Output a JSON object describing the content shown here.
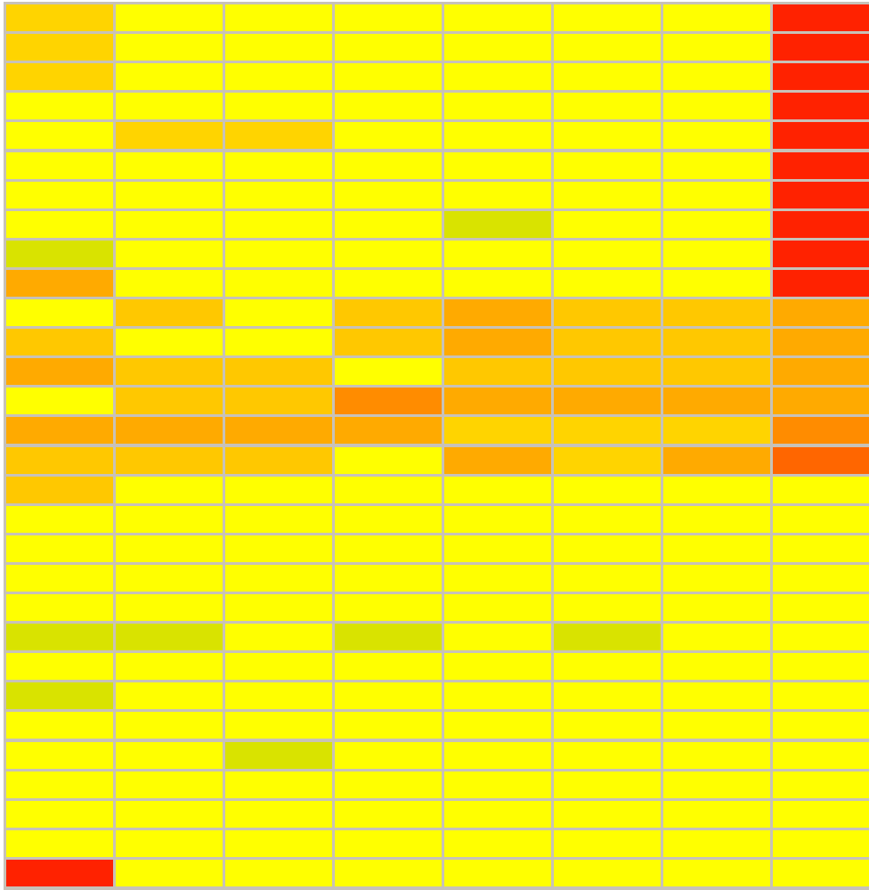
{
  "grid": {
    "background": "#c8c2b8",
    "rows": [
      [
        "#ffd400",
        "#ffff00",
        "#ffff00",
        "#ffff00",
        "#ffff00",
        "#ffff00",
        "#ffff00",
        "#ff2200"
      ],
      [
        "#ffd400",
        "#ffff00",
        "#ffff00",
        "#ffff00",
        "#ffff00",
        "#ffff00",
        "#ffff00",
        "#ff2200"
      ],
      [
        "#ffd400",
        "#ffff00",
        "#ffff00",
        "#ffff00",
        "#ffff00",
        "#ffff00",
        "#ffff00",
        "#ff2200"
      ],
      [
        "#ffff00",
        "#ffff00",
        "#ffff00",
        "#ffff00",
        "#ffff00",
        "#ffff00",
        "#ffff00",
        "#ff2200"
      ],
      [
        "#ffff00",
        "#ffd400",
        "#ffd400",
        "#ffff00",
        "#ffff00",
        "#ffff00",
        "#ffff00",
        "#ff2200"
      ],
      [
        "#ffff00",
        "#ffff00",
        "#ffff00",
        "#ffff00",
        "#ffff00",
        "#ffff00",
        "#ffff00",
        "#ff2200"
      ],
      [
        "#ffff00",
        "#ffff00",
        "#ffff00",
        "#ffff00",
        "#ffff00",
        "#ffff00",
        "#ffff00",
        "#ff2200"
      ],
      [
        "#ffff00",
        "#ffff00",
        "#ffff00",
        "#ffff00",
        "#d9e300",
        "#ffff00",
        "#ffff00",
        "#ff2200"
      ],
      [
        "#d9e300",
        "#ffff00",
        "#ffff00",
        "#ffff00",
        "#ffff00",
        "#ffff00",
        "#ffff00",
        "#ff2200"
      ],
      [
        "#ffaa00",
        "#ffff00",
        "#ffff00",
        "#ffff00",
        "#ffff00",
        "#ffff00",
        "#ffff00",
        "#ff2200"
      ],
      [
        "#ffff00",
        "#ffc800",
        "#ffff00",
        "#ffc800",
        "#ffaa00",
        "#ffc800",
        "#ffc800",
        "#ffaa00"
      ],
      [
        "#ffc800",
        "#ffff00",
        "#ffff00",
        "#ffc800",
        "#ffaa00",
        "#ffc800",
        "#ffc800",
        "#ffaa00"
      ],
      [
        "#ffaa00",
        "#ffc800",
        "#ffc800",
        "#ffff00",
        "#ffc800",
        "#ffc800",
        "#ffc800",
        "#ffaa00"
      ],
      [
        "#ffff00",
        "#ffc800",
        "#ffc800",
        "#ff8c00",
        "#ffaa00",
        "#ffaa00",
        "#ffaa00",
        "#ffaa00"
      ],
      [
        "#ffaa00",
        "#ffaa00",
        "#ffaa00",
        "#ffaa00",
        "#ffd400",
        "#ffd400",
        "#ffd400",
        "#ff8c00"
      ],
      [
        "#ffc800",
        "#ffc800",
        "#ffc800",
        "#ffff00",
        "#ffaa00",
        "#ffd400",
        "#ffaa00",
        "#ff6600"
      ],
      [
        "#ffc800",
        "#ffff00",
        "#ffff00",
        "#ffff00",
        "#ffff00",
        "#ffff00",
        "#ffff00",
        "#ffff00"
      ],
      [
        "#ffff00",
        "#ffff00",
        "#ffff00",
        "#ffff00",
        "#ffff00",
        "#ffff00",
        "#ffff00",
        "#ffff00"
      ],
      [
        "#ffff00",
        "#ffff00",
        "#ffff00",
        "#ffff00",
        "#ffff00",
        "#ffff00",
        "#ffff00",
        "#ffff00"
      ],
      [
        "#ffff00",
        "#ffff00",
        "#ffff00",
        "#ffff00",
        "#ffff00",
        "#ffff00",
        "#ffff00",
        "#ffff00"
      ],
      [
        "#ffff00",
        "#ffff00",
        "#ffff00",
        "#ffff00",
        "#ffff00",
        "#ffff00",
        "#ffff00",
        "#ffff00"
      ],
      [
        "#d9e300",
        "#d9e300",
        "#ffff00",
        "#d9e300",
        "#ffff00",
        "#d9e300",
        "#ffff00",
        "#ffff00"
      ],
      [
        "#ffff00",
        "#ffff00",
        "#ffff00",
        "#ffff00",
        "#ffff00",
        "#ffff00",
        "#ffff00",
        "#ffff00"
      ],
      [
        "#d9e300",
        "#ffff00",
        "#ffff00",
        "#ffff00",
        "#ffff00",
        "#ffff00",
        "#ffff00",
        "#ffff00"
      ],
      [
        "#ffff00",
        "#ffff00",
        "#ffff00",
        "#ffff00",
        "#ffff00",
        "#ffff00",
        "#ffff00",
        "#ffff00"
      ],
      [
        "#ffff00",
        "#ffff00",
        "#d9e300",
        "#ffff00",
        "#ffff00",
        "#ffff00",
        "#ffff00",
        "#ffff00"
      ],
      [
        "#ffff00",
        "#ffff00",
        "#ffff00",
        "#ffff00",
        "#ffff00",
        "#ffff00",
        "#ffff00",
        "#ffff00"
      ],
      [
        "#ffff00",
        "#ffff00",
        "#ffff00",
        "#ffff00",
        "#ffff00",
        "#ffff00",
        "#ffff00",
        "#ffff00"
      ],
      [
        "#ffff00",
        "#ffff00",
        "#ffff00",
        "#ffff00",
        "#ffff00",
        "#ffff00",
        "#ffff00",
        "#ffff00"
      ],
      [
        "#ff2200",
        "#ffff00",
        "#ffff00",
        "#ffff00",
        "#ffff00",
        "#ffff00",
        "#ffff00",
        "#ffff00"
      ]
    ]
  }
}
